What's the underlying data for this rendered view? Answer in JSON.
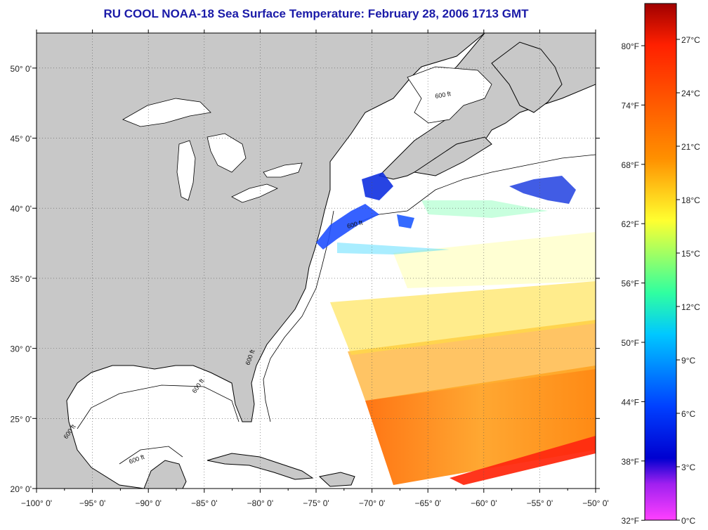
{
  "title": "RU COOL  NOAA-18  Sea Surface Temperature:  February 28, 2006 1713 GMT",
  "map": {
    "lon_range": [
      -100,
      -50
    ],
    "lat_range": [
      20,
      52.5
    ],
    "lon_ticks": [
      {
        "value": -100,
        "label": "−100° 0'"
      },
      {
        "value": -95,
        "label": "−95° 0'"
      },
      {
        "value": -90,
        "label": "−90° 0'"
      },
      {
        "value": -85,
        "label": "−85° 0'"
      },
      {
        "value": -80,
        "label": "−80° 0'"
      },
      {
        "value": -75,
        "label": "−75° 0'"
      },
      {
        "value": -70,
        "label": "−70° 0'"
      },
      {
        "value": -65,
        "label": "−65° 0'"
      },
      {
        "value": -60,
        "label": "−60° 0'"
      },
      {
        "value": -55,
        "label": "−55° 0'"
      },
      {
        "value": -50,
        "label": "−50° 0'"
      }
    ],
    "lat_ticks": [
      {
        "value": 20,
        "label": "20° 0'"
      },
      {
        "value": 25,
        "label": "25° 0'"
      },
      {
        "value": 30,
        "label": "30° 0'"
      },
      {
        "value": 35,
        "label": "35° 0'"
      },
      {
        "value": 40,
        "label": "40° 0'"
      },
      {
        "value": 45,
        "label": "45° 0'"
      },
      {
        "value": 50,
        "label": "50° 0'"
      }
    ],
    "isobath_label": "600 ft",
    "colors": {
      "land": "#c8c8c8",
      "ocean": "#ffffff",
      "coast": "#000000",
      "grid": "#555555"
    }
  },
  "colorbar": {
    "fahrenheit_labels": [
      "80°F",
      "74°F",
      "68°F",
      "62°F",
      "56°F",
      "50°F",
      "44°F",
      "38°F",
      "32°F"
    ],
    "celsius_labels": [
      "27°C",
      "24°C",
      "21°C",
      "18°C",
      "15°C",
      "12°C",
      "9°C",
      "6°C",
      "3°C",
      "0°C"
    ],
    "stops": [
      "#a00000",
      "#ff2000",
      "#ff9000",
      "#ffff30",
      "#30ffa0",
      "#00c8ff",
      "#0040ff",
      "#0000d0",
      "#a020f0",
      "#ff40ff"
    ]
  }
}
